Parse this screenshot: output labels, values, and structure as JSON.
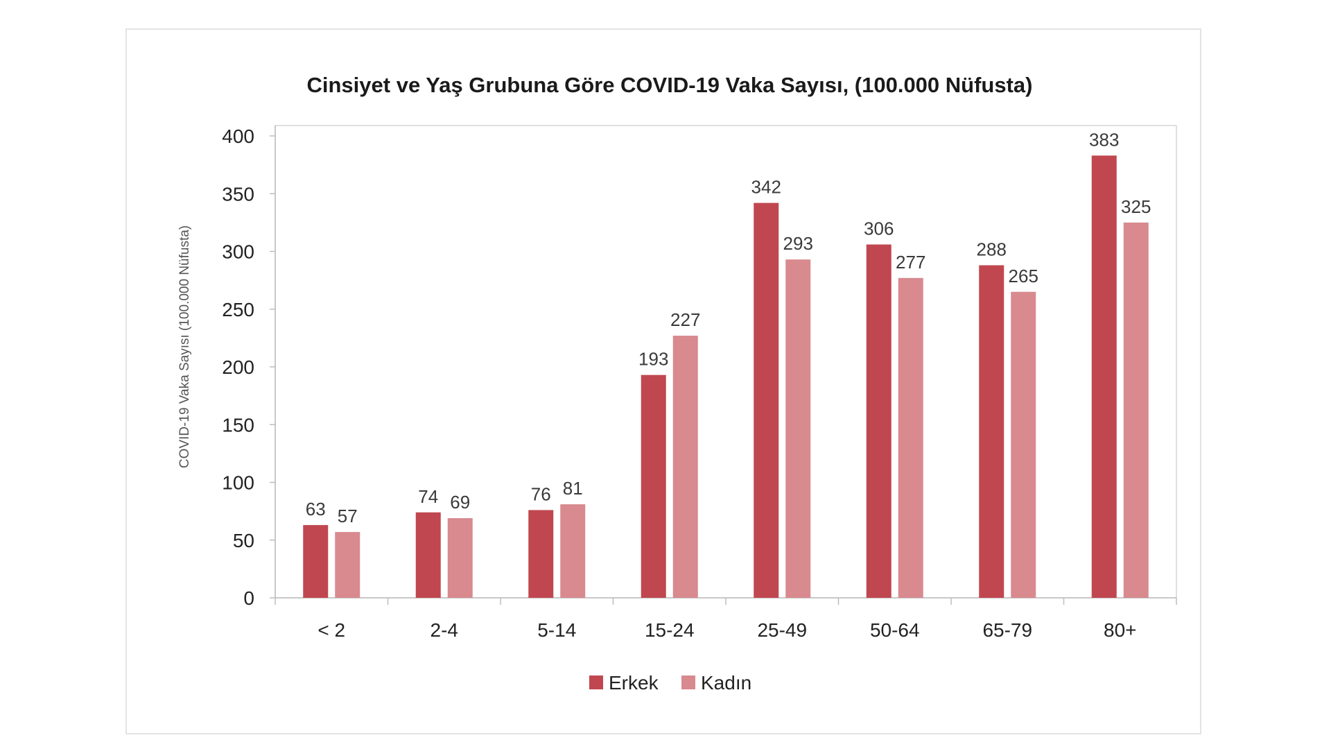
{
  "chart_data": {
    "type": "bar",
    "title": "Cinsiyet ve Yaş Grubuna Göre COVID-19 Vaka Sayısı, (100.000 Nüfusta)",
    "xlabel": "",
    "ylabel": "COVID-19 Vaka Sayısı (100.000 Nüfusta)",
    "ylim": [
      0,
      400
    ],
    "yticks": [
      0,
      50,
      100,
      150,
      200,
      250,
      300,
      350,
      400
    ],
    "categories": [
      "< 2",
      "2-4",
      "5-14",
      "15-24",
      "25-49",
      "50-64",
      "65-79",
      "80+"
    ],
    "series": [
      {
        "name": "Erkek",
        "color": "#c0474f",
        "values": [
          63,
          74,
          76,
          193,
          342,
          306,
          288,
          383
        ]
      },
      {
        "name": "Kadın",
        "color": "#d88a8f",
        "values": [
          57,
          69,
          81,
          227,
          293,
          277,
          265,
          325
        ]
      }
    ],
    "grid": false,
    "legend": "bottom-center",
    "data_labels": true
  }
}
